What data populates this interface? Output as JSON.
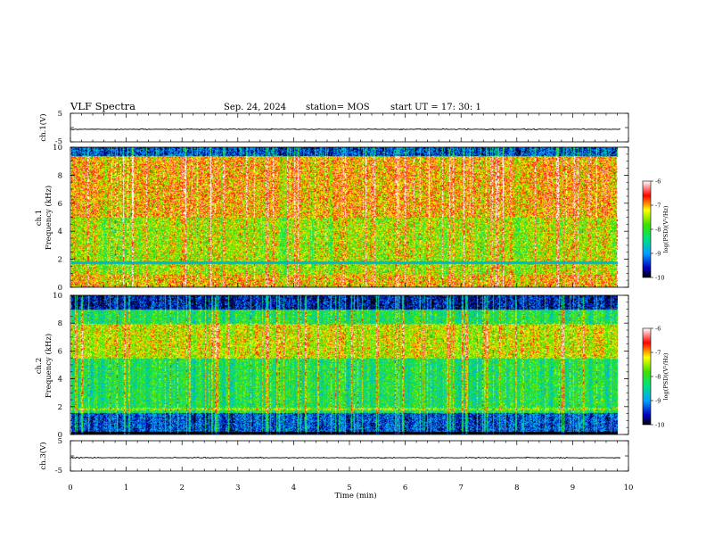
{
  "header": {
    "title": "VLF Spectra",
    "date": "Sep. 24, 2024",
    "station": "station= MOS",
    "start_ut": "start  UT =   17: 30: 1"
  },
  "chart_data": [
    {
      "type": "line",
      "name": "ch1-waveform",
      "ylabel": "ch.1(V)",
      "ylim": [
        -5,
        5
      ],
      "yticks": [
        "5",
        "-5"
      ],
      "xlim": [
        0,
        10
      ]
    },
    {
      "type": "heatmap",
      "name": "ch1-spectrogram",
      "ylabel": "ch.1\nFrequency (kHz)",
      "ylim": [
        0,
        10
      ],
      "yticks": [
        "0",
        "2",
        "4",
        "6",
        "8",
        "10"
      ],
      "xlim": [
        0,
        10
      ],
      "colorbar": {
        "label": "log(PSD)(V²/Hz)",
        "range": [
          -10,
          -6
        ],
        "ticks": [
          "-6",
          "-7",
          "-8",
          "-9",
          "-10"
        ]
      }
    },
    {
      "type": "heatmap",
      "name": "ch2-spectrogram",
      "ylabel": "ch.2\nFrequency (kHz)",
      "ylim": [
        0,
        10
      ],
      "yticks": [
        "0",
        "2",
        "4",
        "6",
        "8",
        "10"
      ],
      "xlim": [
        0,
        10
      ],
      "colorbar": {
        "label": "log(PSD)(V²/Hz)",
        "range": [
          -10,
          -6
        ],
        "ticks": [
          "-6",
          "-7",
          "-8",
          "-9",
          "-10"
        ]
      }
    },
    {
      "type": "line",
      "name": "ch3-waveform",
      "ylabel": "ch.3(V)",
      "ylim": [
        -5,
        5
      ],
      "yticks": [
        "5",
        "-5"
      ],
      "xlim": [
        0,
        10
      ],
      "xlabel": "Time  (min)",
      "xticks": [
        "0",
        "1",
        "2",
        "3",
        "4",
        "5",
        "6",
        "7",
        "8",
        "9",
        "10"
      ]
    }
  ]
}
